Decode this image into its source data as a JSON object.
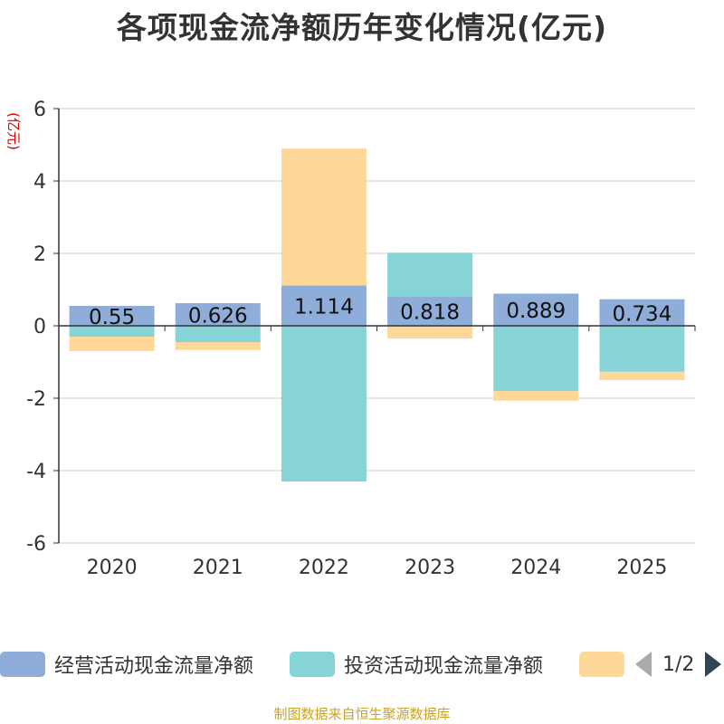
{
  "chart_data": {
    "type": "bar",
    "stacked": true,
    "title": "各项现金流净额历年变化情况(亿元)",
    "ylabel": "(亿元)",
    "xlabel": "",
    "ylim": [
      -6,
      6
    ],
    "yticks": [
      6,
      4,
      2,
      0,
      -2,
      -4,
      -6
    ],
    "categories": [
      "2020",
      "2021",
      "2022",
      "2023",
      "2024",
      "2025"
    ],
    "series": [
      {
        "name": "经营活动现金流量净额",
        "color": "#8eadd9",
        "values": [
          0.55,
          0.626,
          1.114,
          0.818,
          0.889,
          0.734
        ],
        "labels": [
          "0.55",
          "0.626",
          "1.114",
          "0.818",
          "0.889",
          "0.734"
        ]
      },
      {
        "name": "投资活动现金流量净额",
        "color": "#86d4d6",
        "values": [
          -0.3,
          -0.45,
          -4.3,
          1.2,
          -1.8,
          -1.27
        ]
      },
      {
        "name": "",
        "color": "#fdd898",
        "values": [
          -0.4,
          -0.22,
          3.78,
          -0.35,
          -0.27,
          -0.23
        ]
      }
    ],
    "legend": {
      "position": "bottom",
      "page": "1/2"
    }
  },
  "source": "制图数据来自恒生聚源数据库"
}
